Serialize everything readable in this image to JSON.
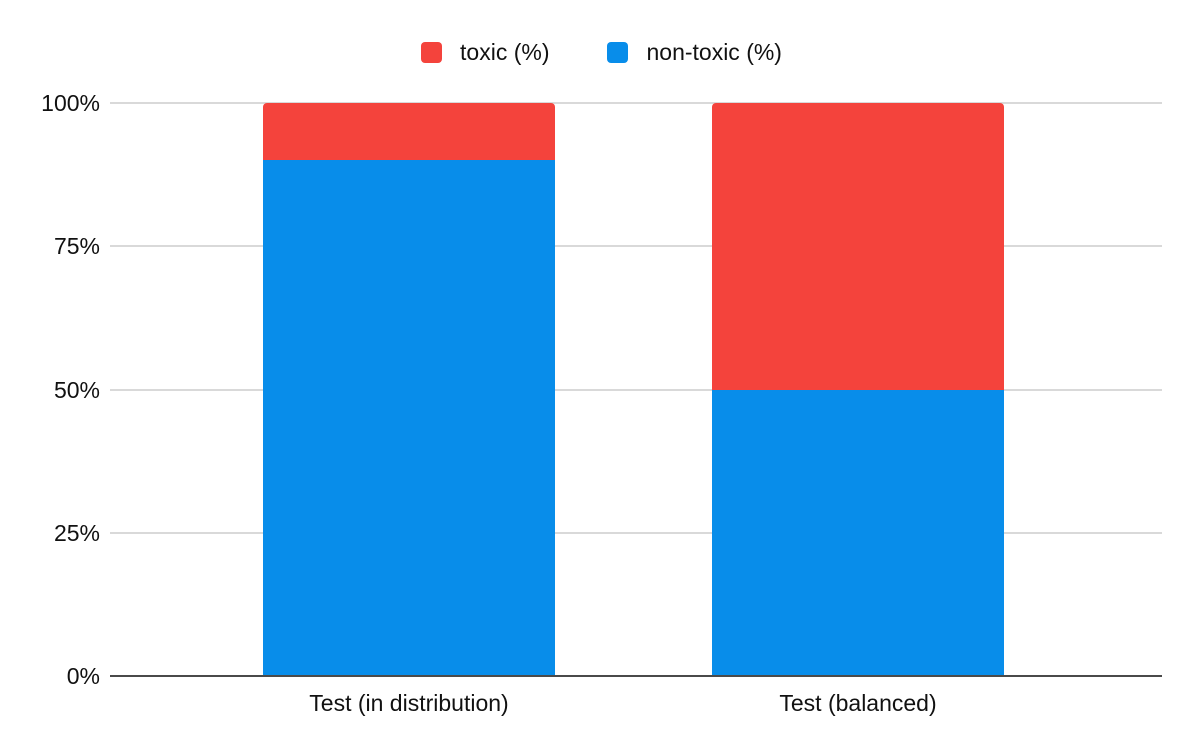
{
  "legend": {
    "items": [
      {
        "label": "toxic (%)",
        "color": "#f4433c"
      },
      {
        "label": "non-toxic (%)",
        "color": "#088dea"
      }
    ]
  },
  "chart_data": {
    "type": "bar",
    "stacked": true,
    "title": "",
    "xlabel": "",
    "ylabel": "",
    "categories": [
      "Test (in distribution)",
      "Test (balanced)"
    ],
    "series": [
      {
        "name": "non-toxic (%)",
        "color": "#088dea",
        "values": [
          90,
          50
        ]
      },
      {
        "name": "toxic (%)",
        "color": "#f4433c",
        "values": [
          10,
          50
        ]
      }
    ],
    "ylim": [
      0,
      100
    ],
    "yticks": [
      "0%",
      "25%",
      "50%",
      "75%",
      "100%"
    ],
    "ytick_values": [
      0,
      25,
      50,
      75,
      100
    ],
    "grid": true,
    "legend_position": "top",
    "gridline_color": "#d9d9d9",
    "axis_line_color": "#4a4a4a",
    "text_color": "#111111",
    "background_color": "#ffffff"
  }
}
